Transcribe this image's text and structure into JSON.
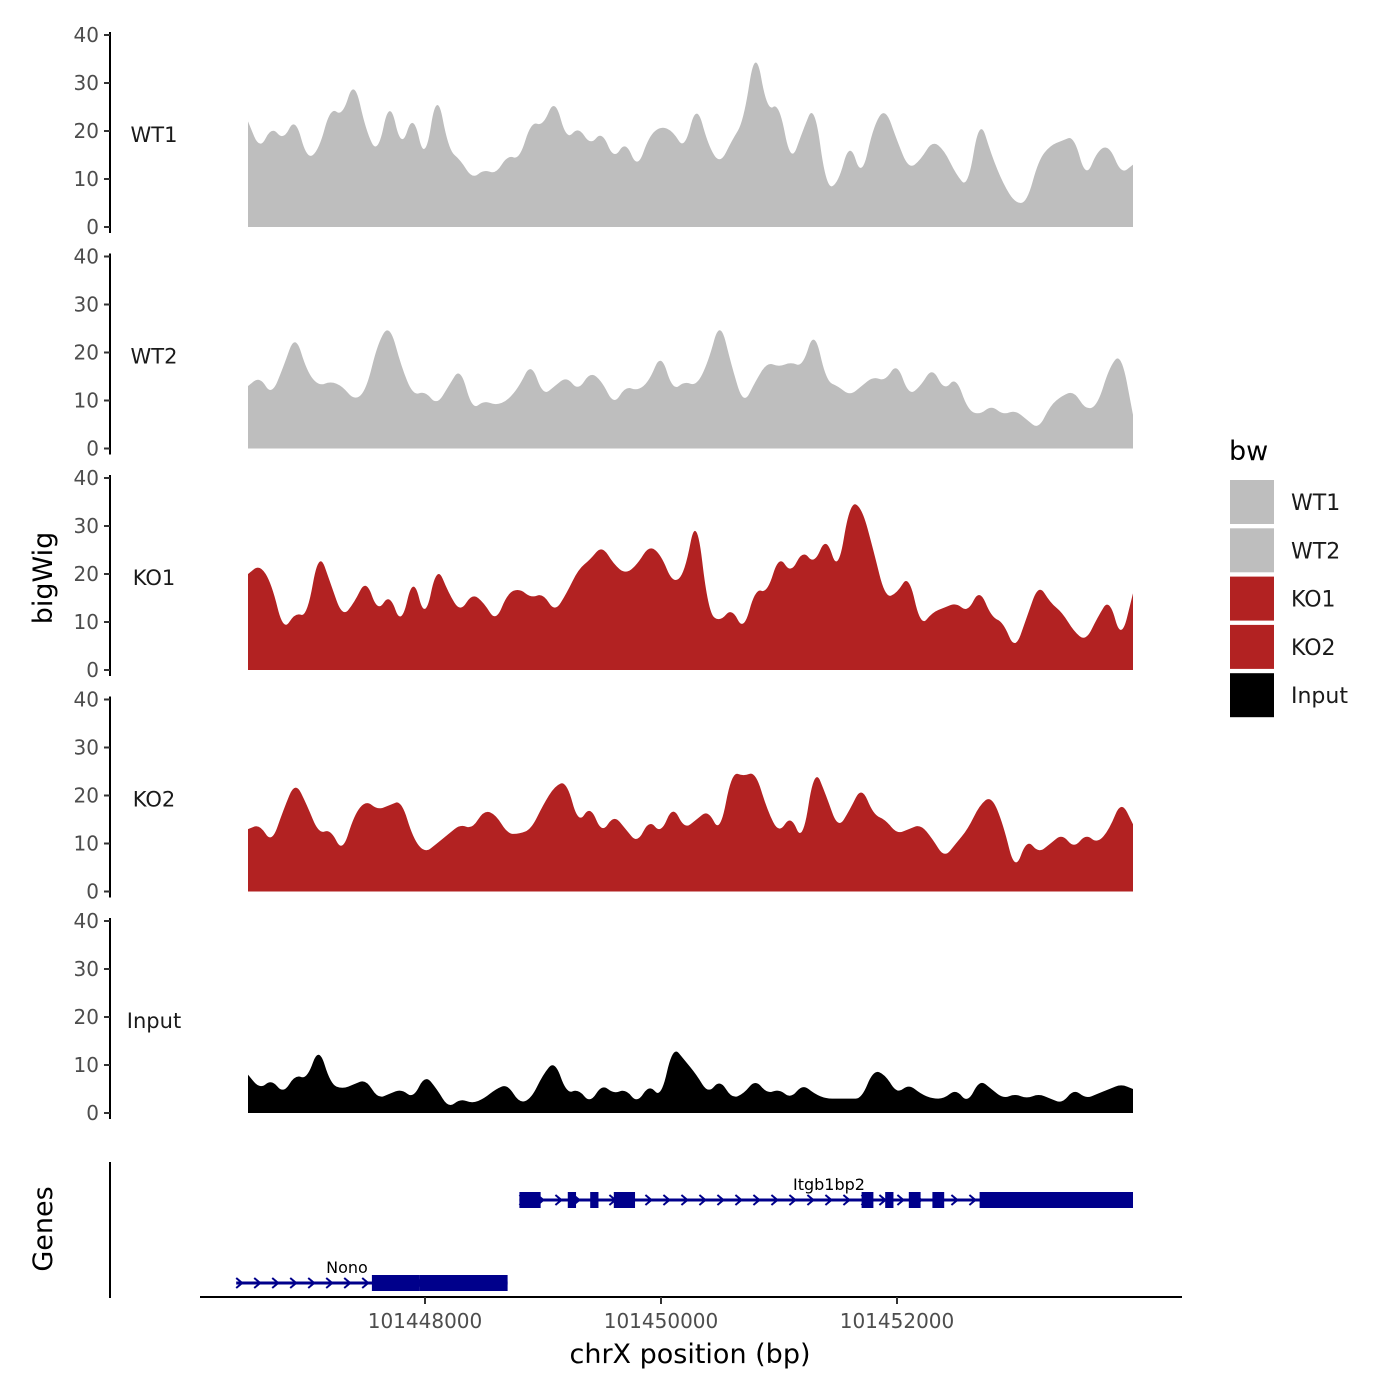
{
  "chart_data": {
    "type": "area",
    "ylabel": "bigWig",
    "xlabel": "chrX position (bp)",
    "x_range": [
      101446500,
      101454000
    ],
    "x_ticks": [
      101448000,
      101450000,
      101452000
    ],
    "x_tick_labels": [
      "101448000",
      "101450000",
      "101452000"
    ],
    "ylim": [
      0,
      40
    ],
    "y_ticks": [
      0,
      10,
      20,
      30,
      40
    ],
    "y_tick_labels": [
      "0",
      "10",
      "20",
      "30",
      "40"
    ],
    "legend": {
      "title": "bw",
      "position": "right",
      "entries": [
        {
          "label": "WT1",
          "color": "#BEBEBE"
        },
        {
          "label": "WT2",
          "color": "#BEBEBE"
        },
        {
          "label": "KO1",
          "color": "#B22222"
        },
        {
          "label": "KO2",
          "color": "#B22222"
        },
        {
          "label": "Input",
          "color": "#000000"
        }
      ]
    },
    "series": [
      {
        "name": "WT1",
        "color": "#BEBEBE",
        "x": [
          101446500,
          101446600,
          101446700,
          101446800,
          101446900,
          101447000,
          101447100,
          101447200,
          101447300,
          101447400,
          101447500,
          101447600,
          101447700,
          101447800,
          101447900,
          101448000,
          101448100,
          101448200,
          101448300,
          101448400,
          101448500,
          101448600,
          101448700,
          101448800,
          101448900,
          101449000,
          101449100,
          101449200,
          101449300,
          101449400,
          101449500,
          101449600,
          101449700,
          101449800,
          101449900,
          101450000,
          101450100,
          101450200,
          101450300,
          101450400,
          101450500,
          101450600,
          101450700,
          101450800,
          101450900,
          101451000,
          101451100,
          101451200,
          101451300,
          101451400,
          101451500,
          101451600,
          101451700,
          101451800,
          101451900,
          101452000,
          101452100,
          101452200,
          101452300,
          101452400,
          101452500,
          101452600,
          101452700,
          101452800,
          101452900,
          101453000,
          101453100,
          101453200,
          101453300,
          101453400,
          101453500,
          101453600,
          101453700,
          101453800,
          101453900,
          101454000
        ],
        "values": [
          22,
          16,
          21,
          18,
          23,
          14,
          16,
          25,
          23,
          31,
          20,
          15,
          27,
          16,
          24,
          13,
          29,
          16,
          14,
          10,
          12,
          11,
          15,
          14,
          22,
          21,
          27,
          18,
          21,
          17,
          20,
          14,
          18,
          12,
          19,
          21,
          20,
          16,
          26,
          17,
          13,
          18,
          22,
          38,
          24,
          26,
          13,
          20,
          26,
          8,
          9,
          18,
          10,
          21,
          25,
          18,
          12,
          14,
          18,
          16,
          11,
          8,
          23,
          15,
          9,
          5,
          5,
          14,
          17,
          18,
          19,
          10,
          16,
          17,
          11,
          13
        ]
      },
      {
        "name": "WT2",
        "color": "#BEBEBE",
        "x": [
          101446500,
          101446600,
          101446700,
          101446800,
          101446900,
          101447000,
          101447100,
          101447200,
          101447300,
          101447400,
          101447500,
          101447600,
          101447700,
          101447800,
          101447900,
          101448000,
          101448100,
          101448200,
          101448300,
          101448400,
          101448500,
          101448600,
          101448700,
          101448800,
          101448900,
          101449000,
          101449100,
          101449200,
          101449300,
          101449400,
          101449500,
          101449600,
          101449700,
          101449800,
          101449900,
          101450000,
          101450100,
          101450200,
          101450300,
          101450400,
          101450500,
          101450600,
          101450700,
          101450800,
          101450900,
          101451000,
          101451100,
          101451200,
          101451300,
          101451400,
          101451500,
          101451600,
          101451700,
          101451800,
          101451900,
          101452000,
          101452100,
          101452200,
          101452300,
          101452400,
          101452500,
          101452600,
          101452700,
          101452800,
          101452900,
          101453000,
          101453100,
          101453200,
          101453300,
          101453400,
          101453500,
          101453600,
          101453700,
          101453800,
          101453900,
          101454000
        ],
        "values": [
          13,
          15,
          11,
          17,
          24,
          16,
          13,
          14,
          13,
          10,
          12,
          22,
          26,
          17,
          11,
          12,
          9,
          13,
          17,
          8,
          10,
          9,
          10,
          13,
          18,
          11,
          13,
          15,
          12,
          16,
          14,
          9,
          13,
          12,
          14,
          20,
          12,
          14,
          13,
          18,
          27,
          17,
          9,
          14,
          18,
          17,
          18,
          17,
          25,
          14,
          13,
          11,
          13,
          15,
          14,
          18,
          11,
          13,
          17,
          12,
          15,
          8,
          7,
          9,
          7,
          8,
          6,
          4,
          9,
          11,
          12,
          8,
          9,
          17,
          20,
          7
        ]
      },
      {
        "name": "KO1",
        "color": "#B22222",
        "x": [
          101446500,
          101446600,
          101446700,
          101446800,
          101446900,
          101447000,
          101447100,
          101447200,
          101447300,
          101447400,
          101447500,
          101447600,
          101447700,
          101447800,
          101447900,
          101448000,
          101448100,
          101448200,
          101448300,
          101448400,
          101448500,
          101448600,
          101448700,
          101448800,
          101448900,
          101449000,
          101449100,
          101449200,
          101449300,
          101449400,
          101449500,
          101449600,
          101449700,
          101449800,
          101449900,
          101450000,
          101450100,
          101450200,
          101450300,
          101450400,
          101450500,
          101450600,
          101450700,
          101450800,
          101450900,
          101451000,
          101451100,
          101451200,
          101451300,
          101451400,
          101451500,
          101451600,
          101451700,
          101451800,
          101451900,
          101452000,
          101452100,
          101452200,
          101452300,
          101452400,
          101452500,
          101452600,
          101452700,
          101452800,
          101452900,
          101453000,
          101453100,
          101453200,
          101453300,
          101453400,
          101453500,
          101453600,
          101453700,
          101453800,
          101453900,
          101454000
        ],
        "values": [
          20,
          22,
          18,
          8,
          12,
          11,
          25,
          18,
          11,
          14,
          19,
          12,
          16,
          9,
          20,
          10,
          22,
          16,
          12,
          16,
          14,
          10,
          16,
          17,
          15,
          16,
          12,
          16,
          21,
          23,
          26,
          22,
          20,
          22,
          26,
          24,
          18,
          20,
          33,
          12,
          10,
          13,
          8,
          17,
          16,
          24,
          20,
          25,
          22,
          28,
          20,
          35,
          34,
          25,
          15,
          16,
          20,
          9,
          12,
          13,
          14,
          12,
          17,
          11,
          10,
          4,
          11,
          18,
          14,
          12,
          8,
          6,
          11,
          15,
          6,
          16
        ]
      },
      {
        "name": "KO2",
        "color": "#B22222",
        "x": [
          101446500,
          101446600,
          101446700,
          101446800,
          101446900,
          101447000,
          101447100,
          101447200,
          101447300,
          101447400,
          101447500,
          101447600,
          101447700,
          101447800,
          101447900,
          101448000,
          101448100,
          101448200,
          101448300,
          101448400,
          101448500,
          101448600,
          101448700,
          101448800,
          101448900,
          101449000,
          101449100,
          101449200,
          101449300,
          101449400,
          101449500,
          101449600,
          101449700,
          101449800,
          101449900,
          101450000,
          101450100,
          101450200,
          101450300,
          101450400,
          101450500,
          101450600,
          101450700,
          101450800,
          101450900,
          101451000,
          101451100,
          101451200,
          101451300,
          101451400,
          101451500,
          101451600,
          101451700,
          101451800,
          101451900,
          101452000,
          101452100,
          101452200,
          101452300,
          101452400,
          101452500,
          101452600,
          101452700,
          101452800,
          101452900,
          101453000,
          101453100,
          101453200,
          101453300,
          101453400,
          101453500,
          101453600,
          101453700,
          101453800,
          101453900,
          101454000
        ],
        "values": [
          13,
          14,
          10,
          17,
          23,
          18,
          12,
          13,
          8,
          16,
          19,
          17,
          18,
          19,
          11,
          8,
          10,
          12,
          14,
          13,
          17,
          16,
          12,
          12,
          13,
          18,
          22,
          23,
          14,
          18,
          12,
          16,
          13,
          10,
          15,
          12,
          18,
          13,
          15,
          17,
          12,
          25,
          24,
          25,
          17,
          12,
          16,
          10,
          26,
          20,
          13,
          17,
          22,
          16,
          15,
          12,
          13,
          14,
          11,
          7,
          10,
          13,
          18,
          20,
          14,
          4,
          11,
          8,
          10,
          12,
          9,
          12,
          10,
          13,
          19,
          14
        ]
      },
      {
        "name": "Input",
        "color": "#000000",
        "x": [
          101446500,
          101446600,
          101446700,
          101446800,
          101446900,
          101447000,
          101447100,
          101447200,
          101447300,
          101447400,
          101447500,
          101447600,
          101447700,
          101447800,
          101447900,
          101448000,
          101448100,
          101448200,
          101448300,
          101448400,
          101448500,
          101448600,
          101448700,
          101448800,
          101448900,
          101449000,
          101449100,
          101449200,
          101449300,
          101449400,
          101449500,
          101449600,
          101449700,
          101449800,
          101449900,
          101450000,
          101450100,
          101450200,
          101450300,
          101450400,
          101450500,
          101450600,
          101450700,
          101450800,
          101450900,
          101451000,
          101451100,
          101451200,
          101451300,
          101451400,
          101451500,
          101451600,
          101451700,
          101451800,
          101451900,
          101452000,
          101452100,
          101452200,
          101452300,
          101452400,
          101452500,
          101452600,
          101452700,
          101452800,
          101452900,
          101453000,
          101453100,
          101453200,
          101453300,
          101453400,
          101453500,
          101453600,
          101453700,
          101453800,
          101453900,
          101454000
        ],
        "values": [
          8,
          5,
          7,
          4,
          8,
          7,
          14,
          6,
          5,
          6,
          7,
          3,
          4,
          5,
          3,
          8,
          5,
          1,
          3,
          2,
          3,
          5,
          6,
          2,
          3,
          8,
          11,
          4,
          5,
          2,
          6,
          4,
          5,
          2,
          6,
          3,
          14,
          11,
          8,
          4,
          7,
          3,
          4,
          7,
          4,
          5,
          3,
          6,
          4,
          3,
          3,
          3,
          3,
          9,
          8,
          4,
          6,
          4,
          3,
          3,
          5,
          2,
          7,
          5,
          3,
          4,
          3,
          4,
          3,
          2,
          5,
          3,
          4,
          5,
          6,
          5
        ]
      }
    ],
    "genes": {
      "title": "Genes",
      "items": [
        {
          "name": "Itgb1bp2",
          "start": 101448800,
          "end": 101454000,
          "strand": "+",
          "exons": [
            [
              101448800,
              101448980
            ],
            [
              101449210,
              101449280
            ],
            [
              101449400,
              101449470
            ],
            [
              101449600,
              101449780
            ],
            [
              101451700,
              101451800
            ],
            [
              101451900,
              101451970
            ],
            [
              101452100,
              101452200
            ],
            [
              101452300,
              101452400
            ],
            [
              101452700,
              101454000
            ]
          ]
        },
        {
          "name": "Nono",
          "start": 101446400,
          "end": 101448700,
          "strand": "+",
          "exons": [
            [
              101447550,
              101447950
            ],
            [
              101447950,
              101448700
            ]
          ]
        }
      ]
    }
  }
}
